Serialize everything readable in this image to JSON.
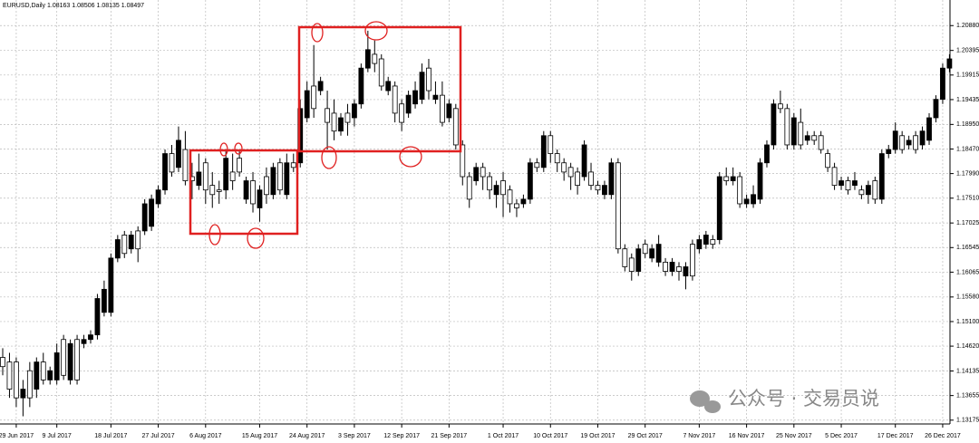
{
  "chart_data": {
    "type": "candlestick",
    "title": "EURUSD,Daily  1.08163 1.08506 1.08135 1.08497",
    "bull_color": "#000000",
    "bear_color": "#ffffff",
    "wick_color": "#000000",
    "grid": true,
    "ylim": [
      1.131,
      1.2138
    ],
    "yticks": [
      {
        "value": 1.2088,
        "label": "1.20880"
      },
      {
        "value": 1.20395,
        "label": "1.20395"
      },
      {
        "value": 1.19915,
        "label": "1.19915"
      },
      {
        "value": 1.19435,
        "label": "1.19435"
      },
      {
        "value": 1.1895,
        "label": "1.18950"
      },
      {
        "value": 1.1847,
        "label": "1.18470"
      },
      {
        "value": 1.1799,
        "label": "1.17990"
      },
      {
        "value": 1.1751,
        "label": "1.17510"
      },
      {
        "value": 1.17025,
        "label": "1.17025"
      },
      {
        "value": 1.16545,
        "label": "1.16545"
      },
      {
        "value": 1.16065,
        "label": "1.16065"
      },
      {
        "value": 1.1558,
        "label": "1.15580"
      },
      {
        "value": 1.151,
        "label": "1.15100"
      },
      {
        "value": 1.1462,
        "label": "1.14620"
      },
      {
        "value": 1.14135,
        "label": "1.14135"
      },
      {
        "value": 1.13655,
        "label": "1.13655"
      },
      {
        "value": 1.13175,
        "label": "1.13175"
      }
    ],
    "categories": [
      null,
      null,
      "29 Jun 2017",
      null,
      null,
      null,
      null,
      null,
      "9 Jul 2017",
      null,
      null,
      null,
      null,
      null,
      null,
      null,
      "18 Jul 2017",
      null,
      null,
      null,
      null,
      null,
      null,
      "27 Jul 2017",
      null,
      null,
      null,
      null,
      null,
      null,
      "6 Aug 2017",
      null,
      null,
      null,
      null,
      null,
      null,
      null,
      "15 Aug 2017",
      null,
      null,
      null,
      null,
      null,
      null,
      "24 Aug 2017",
      null,
      null,
      null,
      null,
      null,
      null,
      "3 Sep 2017",
      null,
      null,
      null,
      null,
      null,
      null,
      "12 Sep 2017",
      null,
      null,
      null,
      null,
      null,
      null,
      "21 Sep 2017",
      null,
      null,
      null,
      null,
      null,
      null,
      null,
      "1 Oct 2017",
      null,
      null,
      null,
      null,
      null,
      null,
      "10 Oct 2017",
      null,
      null,
      null,
      null,
      null,
      null,
      "19 Oct 2017",
      null,
      null,
      null,
      null,
      null,
      null,
      "29 Oct 2017",
      null,
      null,
      null,
      null,
      null,
      null,
      null,
      "7 Nov 2017",
      null,
      null,
      null,
      null,
      null,
      null,
      "16 Nov 2017",
      null,
      null,
      null,
      null,
      null,
      null,
      "25 Nov 2017",
      null,
      null,
      null,
      null,
      null,
      null,
      "5 Dec 2017",
      null,
      null,
      null,
      null,
      null,
      null,
      null,
      "17 Dec 2017",
      null,
      null,
      null,
      null,
      null,
      null,
      "26 Dec 2017",
      null
    ],
    "ohlc": [
      [
        1.144,
        1.1458,
        1.1405,
        1.1422
      ],
      [
        1.1431,
        1.1449,
        1.1361,
        1.1378
      ],
      [
        1.1431,
        1.144,
        1.1343,
        1.1361
      ],
      [
        1.1361,
        1.1396,
        1.1325,
        1.1378
      ],
      [
        1.1414,
        1.1431,
        1.1343,
        1.1361
      ],
      [
        1.1378,
        1.144,
        1.1361,
        1.1431
      ],
      [
        1.1431,
        1.1449,
        1.1387,
        1.1396
      ],
      [
        1.1396,
        1.1422,
        1.1387,
        1.1414
      ],
      [
        1.1396,
        1.1467,
        1.1387,
        1.1449
      ],
      [
        1.1475,
        1.1484,
        1.1396,
        1.1405
      ],
      [
        1.1396,
        1.1475,
        1.1387,
        1.1467
      ],
      [
        1.1475,
        1.1484,
        1.1387,
        1.1396
      ],
      [
        1.1467,
        1.1484,
        1.1458,
        1.1475
      ],
      [
        1.1475,
        1.1493,
        1.1467,
        1.1484
      ],
      [
        1.1484,
        1.1564,
        1.1475,
        1.1555
      ],
      [
        1.1528,
        1.159,
        1.152,
        1.1573
      ],
      [
        1.1528,
        1.1643,
        1.152,
        1.1634
      ],
      [
        1.1634,
        1.1679,
        1.1626,
        1.167
      ],
      [
        1.1679,
        1.1687,
        1.1634,
        1.1643
      ],
      [
        1.1652,
        1.1687,
        1.1643,
        1.1679
      ],
      [
        1.1687,
        1.1696,
        1.1626,
        1.1652
      ],
      [
        1.1687,
        1.1749,
        1.1679,
        1.174
      ],
      [
        1.1696,
        1.1758,
        1.1687,
        1.1749
      ],
      [
        1.174,
        1.1776,
        1.1732,
        1.1767
      ],
      [
        1.1767,
        1.1846,
        1.1758,
        1.1838
      ],
      [
        1.1838,
        1.1855,
        1.1793,
        1.1802
      ],
      [
        1.1811,
        1.1891,
        1.1802,
        1.1864
      ],
      [
        1.1846,
        1.1882,
        1.1776,
        1.1785
      ],
      [
        1.1793,
        1.182,
        1.1749,
        1.1785
      ],
      [
        1.1776,
        1.1838,
        1.1767,
        1.1802
      ],
      [
        1.182,
        1.1829,
        1.174,
        1.1767
      ],
      [
        1.1776,
        1.1802,
        1.1732,
        1.1758
      ],
      [
        1.1767,
        1.1785,
        1.174,
        1.1764
      ],
      [
        1.1767,
        1.1846,
        1.1749,
        1.1829
      ],
      [
        1.1802,
        1.1838,
        1.1767,
        1.1785
      ],
      [
        1.1829,
        1.1846,
        1.1793,
        1.1802
      ],
      [
        1.1749,
        1.1793,
        1.174,
        1.1785
      ],
      [
        1.1785,
        1.1802,
        1.1723,
        1.174
      ],
      [
        1.1732,
        1.1776,
        1.1705,
        1.1767
      ],
      [
        1.1793,
        1.1811,
        1.174,
        1.1758
      ],
      [
        1.1758,
        1.182,
        1.1749,
        1.1811
      ],
      [
        1.182,
        1.1829,
        1.1758,
        1.1767
      ],
      [
        1.1758,
        1.1838,
        1.1749,
        1.182
      ],
      [
        1.182,
        1.1838,
        1.1802,
        1.1811
      ],
      [
        1.182,
        1.1944,
        1.1811,
        1.1926
      ],
      [
        1.1908,
        1.1979,
        1.1899,
        1.1961
      ],
      [
        1.197,
        1.205,
        1.1908,
        1.1926
      ],
      [
        1.1961,
        1.1988,
        1.1952,
        1.1979
      ],
      [
        1.1926,
        1.1961,
        1.1846,
        1.1899
      ],
      [
        1.1917,
        1.1944,
        1.1864,
        1.1882
      ],
      [
        1.1882,
        1.1917,
        1.1873,
        1.1908
      ],
      [
        1.1917,
        1.1935,
        1.1873,
        1.1899
      ],
      [
        1.1908,
        1.1944,
        1.1891,
        1.1935
      ],
      [
        1.1935,
        1.2014,
        1.1926,
        1.2005
      ],
      [
        1.2005,
        1.2078,
        1.1997,
        1.2041
      ],
      [
        1.2032,
        1.2059,
        1.1997,
        1.2014
      ],
      [
        1.2023,
        1.2032,
        1.1961,
        1.197
      ],
      [
        1.1961,
        1.1988,
        1.1952,
        1.1979
      ],
      [
        1.197,
        1.1979,
        1.1899,
        1.1917
      ],
      [
        1.1935,
        1.1944,
        1.1882,
        1.1899
      ],
      [
        1.1917,
        1.1961,
        1.1908,
        1.1952
      ],
      [
        1.1935,
        1.1979,
        1.1926,
        1.1961
      ],
      [
        1.1944,
        1.2014,
        1.1935,
        1.1997
      ],
      [
        1.2005,
        1.2023,
        1.1944,
        1.1961
      ],
      [
        1.1944,
        1.1979,
        1.1935,
        1.1952
      ],
      [
        1.1952,
        1.1979,
        1.1891,
        1.1899
      ],
      [
        1.1908,
        1.1944,
        1.1899,
        1.1935
      ],
      [
        1.1926,
        1.1935,
        1.1846,
        1.1855
      ],
      [
        1.1855,
        1.1864,
        1.1776,
        1.1793
      ],
      [
        1.1793,
        1.1802,
        1.1732,
        1.1749
      ],
      [
        1.1785,
        1.182,
        1.1776,
        1.1811
      ],
      [
        1.1811,
        1.182,
        1.1767,
        1.1793
      ],
      [
        1.1793,
        1.1802,
        1.1749,
        1.1767
      ],
      [
        1.1758,
        1.1785,
        1.1732,
        1.1776
      ],
      [
        1.1785,
        1.1802,
        1.1714,
        1.1758
      ],
      [
        1.1767,
        1.1776,
        1.1723,
        1.174
      ],
      [
        1.174,
        1.1749,
        1.1714,
        1.1732
      ],
      [
        1.174,
        1.1758,
        1.1732,
        1.1749
      ],
      [
        1.1749,
        1.1829,
        1.174,
        1.182
      ],
      [
        1.182,
        1.1829,
        1.1802,
        1.1811
      ],
      [
        1.1811,
        1.1882,
        1.1802,
        1.1873
      ],
      [
        1.1873,
        1.1882,
        1.182,
        1.1838
      ],
      [
        1.1838,
        1.1846,
        1.1802,
        1.182
      ],
      [
        1.182,
        1.1829,
        1.1785,
        1.1802
      ],
      [
        1.1811,
        1.182,
        1.1767,
        1.1793
      ],
      [
        1.1802,
        1.1811,
        1.1758,
        1.1776
      ],
      [
        1.1793,
        1.1864,
        1.1785,
        1.1855
      ],
      [
        1.1802,
        1.182,
        1.1767,
        1.1776
      ],
      [
        1.1776,
        1.1785,
        1.1758,
        1.1767
      ],
      [
        1.1758,
        1.1785,
        1.1749,
        1.1776
      ],
      [
        1.1758,
        1.1829,
        1.1749,
        1.182
      ],
      [
        1.182,
        1.1829,
        1.1643,
        1.1652
      ],
      [
        1.1652,
        1.1661,
        1.1608,
        1.1617
      ],
      [
        1.1634,
        1.1643,
        1.159,
        1.1608
      ],
      [
        1.1608,
        1.1661,
        1.1599,
        1.1652
      ],
      [
        1.1661,
        1.167,
        1.1634,
        1.1643
      ],
      [
        1.1634,
        1.1661,
        1.1626,
        1.1652
      ],
      [
        1.1626,
        1.1679,
        1.1617,
        1.1661
      ],
      [
        1.1626,
        1.1634,
        1.1599,
        1.1608
      ],
      [
        1.1608,
        1.1634,
        1.1599,
        1.1626
      ],
      [
        1.1617,
        1.1626,
        1.159,
        1.1608
      ],
      [
        1.1599,
        1.1626,
        1.1573,
        1.1617
      ],
      [
        1.1661,
        1.167,
        1.159,
        1.1599
      ],
      [
        1.1652,
        1.1679,
        1.1643,
        1.167
      ],
      [
        1.1661,
        1.1687,
        1.1652,
        1.1679
      ],
      [
        1.167,
        1.1679,
        1.1652,
        1.1661
      ],
      [
        1.167,
        1.1802,
        1.1661,
        1.1793
      ],
      [
        1.1793,
        1.1811,
        1.1776,
        1.1785
      ],
      [
        1.1785,
        1.1811,
        1.1776,
        1.1793
      ],
      [
        1.1793,
        1.1802,
        1.1732,
        1.174
      ],
      [
        1.174,
        1.1758,
        1.1732,
        1.1749
      ],
      [
        1.174,
        1.1776,
        1.1732,
        1.1758
      ],
      [
        1.1749,
        1.1829,
        1.174,
        1.182
      ],
      [
        1.182,
        1.1864,
        1.1811,
        1.1855
      ],
      [
        1.1855,
        1.1944,
        1.1846,
        1.1935
      ],
      [
        1.1935,
        1.1961,
        1.1917,
        1.1926
      ],
      [
        1.1926,
        1.1935,
        1.1846,
        1.1855
      ],
      [
        1.1855,
        1.1917,
        1.1846,
        1.1908
      ],
      [
        1.1899,
        1.1926,
        1.1846,
        1.1855
      ],
      [
        1.1864,
        1.1882,
        1.1855,
        1.1873
      ],
      [
        1.1873,
        1.1882,
        1.1855,
        1.1864
      ],
      [
        1.1873,
        1.1882,
        1.1838,
        1.1846
      ],
      [
        1.1838,
        1.1846,
        1.1802,
        1.1811
      ],
      [
        1.1811,
        1.182,
        1.1767,
        1.1776
      ],
      [
        1.1776,
        1.1793,
        1.1767,
        1.1785
      ],
      [
        1.1785,
        1.1793,
        1.1758,
        1.1767
      ],
      [
        1.1776,
        1.1802,
        1.1767,
        1.1785
      ],
      [
        1.1767,
        1.1776,
        1.1749,
        1.1758
      ],
      [
        1.1758,
        1.1785,
        1.174,
        1.1776
      ],
      [
        1.1785,
        1.1793,
        1.174,
        1.1749
      ],
      [
        1.1749,
        1.1846,
        1.174,
        1.1838
      ],
      [
        1.1838,
        1.1855,
        1.1829,
        1.1846
      ],
      [
        1.1846,
        1.1899,
        1.1838,
        1.1882
      ],
      [
        1.1873,
        1.1882,
        1.1838,
        1.1846
      ],
      [
        1.1855,
        1.1873,
        1.1846,
        1.1864
      ],
      [
        1.1873,
        1.1882,
        1.1838,
        1.1846
      ],
      [
        1.1855,
        1.1891,
        1.1846,
        1.1882
      ],
      [
        1.1864,
        1.1917,
        1.1855,
        1.1908
      ],
      [
        1.1908,
        1.1952,
        1.1899,
        1.1944
      ],
      [
        1.1944,
        1.2014,
        1.1935,
        1.2005
      ],
      [
        1.2005,
        1.2032,
        1.1997,
        1.2023
      ]
    ]
  },
  "watermark": "公众号 · 交易员说"
}
